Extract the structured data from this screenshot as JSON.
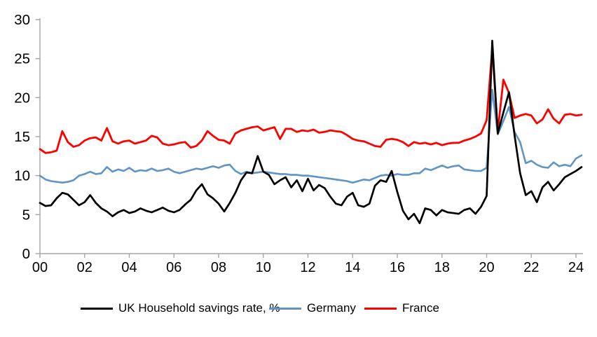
{
  "chart_data": {
    "type": "line",
    "title": "",
    "xlabel": "",
    "ylabel": "",
    "x_start": "2000Q1",
    "x_end": "2024Q2",
    "x_frequency": "quarterly",
    "ylim": [
      0,
      30
    ],
    "y_ticks": [
      "0",
      "5",
      "10",
      "15",
      "20",
      "25",
      "30"
    ],
    "x_tick_labels": [
      "00",
      "02",
      "04",
      "06",
      "08",
      "10",
      "12",
      "14",
      "16",
      "18",
      "20",
      "22",
      "24"
    ],
    "grid": false,
    "legend_position": "bottom",
    "axis_color": "#A6A6A6",
    "series": [
      {
        "name": "UK Household savings rate, %",
        "color": "#000000",
        "values": [
          6.5,
          6.1,
          6.2,
          7.1,
          7.8,
          7.6,
          6.9,
          6.2,
          6.6,
          7.5,
          6.5,
          5.8,
          5.4,
          4.8,
          5.3,
          5.6,
          5.2,
          5.4,
          5.8,
          5.5,
          5.3,
          5.6,
          5.9,
          5.5,
          5.3,
          5.6,
          6.3,
          6.9,
          8.1,
          8.9,
          7.6,
          7.1,
          6.4,
          5.4,
          6.5,
          7.8,
          9.4,
          10.4,
          10.3,
          12.5,
          10.5,
          10.1,
          8.9,
          9.4,
          9.8,
          8.5,
          9.4,
          8.0,
          9.6,
          8.1,
          8.8,
          8.4,
          7.3,
          6.4,
          6.2,
          7.3,
          7.8,
          6.2,
          6.0,
          6.4,
          8.7,
          9.4,
          9.2,
          10.6,
          7.9,
          5.5,
          4.4,
          5.1,
          3.9,
          5.8,
          5.6,
          4.9,
          5.6,
          5.3,
          5.2,
          5.1,
          5.6,
          5.8,
          5.1,
          6.0,
          7.4,
          27.3,
          15.4,
          18.1,
          20.7,
          15.2,
          10.3,
          7.5,
          8.0,
          6.6,
          8.5,
          9.2,
          8.1,
          8.9,
          9.8,
          10.2,
          10.6,
          11.1
        ]
      },
      {
        "name": "Germany",
        "color": "#5F94C5",
        "values": [
          10.0,
          9.5,
          9.3,
          9.2,
          9.1,
          9.2,
          9.4,
          10.0,
          10.2,
          10.5,
          10.2,
          10.3,
          11.1,
          10.5,
          10.8,
          10.6,
          11.0,
          10.5,
          10.7,
          10.6,
          10.9,
          10.6,
          10.7,
          10.9,
          10.5,
          10.3,
          10.5,
          10.7,
          10.9,
          10.8,
          11.0,
          11.2,
          11.0,
          11.3,
          11.4,
          10.6,
          10.2,
          10.5,
          10.3,
          10.4,
          10.5,
          10.4,
          10.3,
          10.2,
          10.2,
          10.1,
          10.1,
          10.0,
          10.0,
          9.9,
          9.8,
          9.7,
          9.6,
          9.5,
          9.4,
          9.3,
          9.1,
          9.3,
          9.5,
          9.4,
          9.7,
          10.0,
          10.1,
          10.0,
          10.2,
          10.1,
          10.1,
          10.3,
          10.3,
          10.9,
          10.7,
          11.0,
          11.3,
          11.0,
          11.2,
          11.3,
          10.8,
          10.7,
          10.6,
          10.6,
          11.0,
          21.0,
          15.3,
          17.0,
          18.8,
          15.6,
          14.3,
          11.6,
          11.9,
          11.4,
          11.1,
          11.0,
          11.7,
          11.2,
          11.4,
          11.2,
          12.2,
          12.6
        ]
      },
      {
        "name": "France",
        "color": "#FF0000",
        "values": [
          13.4,
          12.9,
          13.0,
          13.2,
          15.7,
          14.3,
          13.7,
          13.9,
          14.5,
          14.8,
          14.9,
          14.5,
          16.1,
          14.4,
          14.1,
          14.4,
          14.5,
          14.1,
          14.3,
          14.5,
          15.1,
          14.9,
          14.1,
          13.9,
          14.0,
          14.2,
          14.3,
          13.6,
          13.8,
          14.5,
          15.7,
          15.1,
          14.6,
          14.5,
          14.1,
          15.4,
          15.8,
          16.0,
          16.2,
          16.3,
          15.8,
          16.0,
          16.2,
          14.7,
          16.0,
          16.0,
          15.6,
          15.8,
          15.7,
          15.9,
          15.5,
          15.6,
          15.8,
          15.7,
          15.6,
          15.2,
          14.7,
          14.5,
          14.4,
          14.1,
          13.8,
          13.7,
          14.6,
          14.7,
          14.6,
          14.3,
          13.8,
          14.3,
          14.1,
          14.2,
          14.0,
          14.2,
          13.9,
          14.1,
          14.2,
          14.2,
          14.5,
          14.7,
          15.0,
          15.4,
          17.1,
          26.3,
          15.7,
          22.3,
          20.6,
          17.4,
          17.7,
          17.9,
          17.7,
          16.7,
          17.2,
          18.5,
          17.3,
          16.7,
          17.8,
          17.9,
          17.7,
          17.8
        ]
      }
    ]
  }
}
